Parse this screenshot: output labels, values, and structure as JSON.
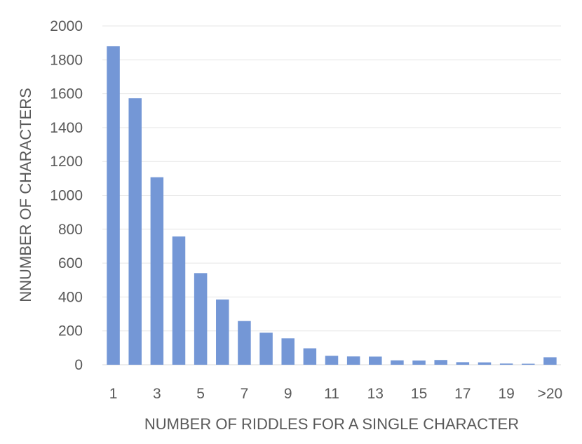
{
  "chart_data": {
    "type": "bar",
    "title": "",
    "xlabel": "NUMBER OF RIDDLES FOR A SINGLE CHARACTER",
    "ylabel": "NNUMBER OF CHARACTERS",
    "categories": [
      "1",
      "2",
      "3",
      "4",
      "5",
      "6",
      "7",
      "8",
      "9",
      "10",
      "11",
      "12",
      "13",
      "14",
      "15",
      "16",
      "17",
      "18",
      "19",
      "20",
      ">20"
    ],
    "x_tick_labels": [
      "1",
      "3",
      "5",
      "7",
      "9",
      "11",
      "13",
      "15",
      "17",
      "19",
      ">20"
    ],
    "series": [
      {
        "values": [
          1880,
          1573,
          1107,
          757,
          541,
          385,
          258,
          189,
          156,
          97,
          53,
          49,
          48,
          26,
          25,
          28,
          15,
          14,
          7,
          6,
          44
        ]
      }
    ],
    "y_ticks": [
      0,
      200,
      400,
      600,
      800,
      1000,
      1200,
      1400,
      1600,
      1800,
      2000
    ],
    "ylim": [
      0,
      2000
    ],
    "grid": true,
    "legend": "none",
    "colors": {
      "bar": "#7497d6",
      "gridline": "#e6e6e6",
      "text": "#595959"
    }
  }
}
